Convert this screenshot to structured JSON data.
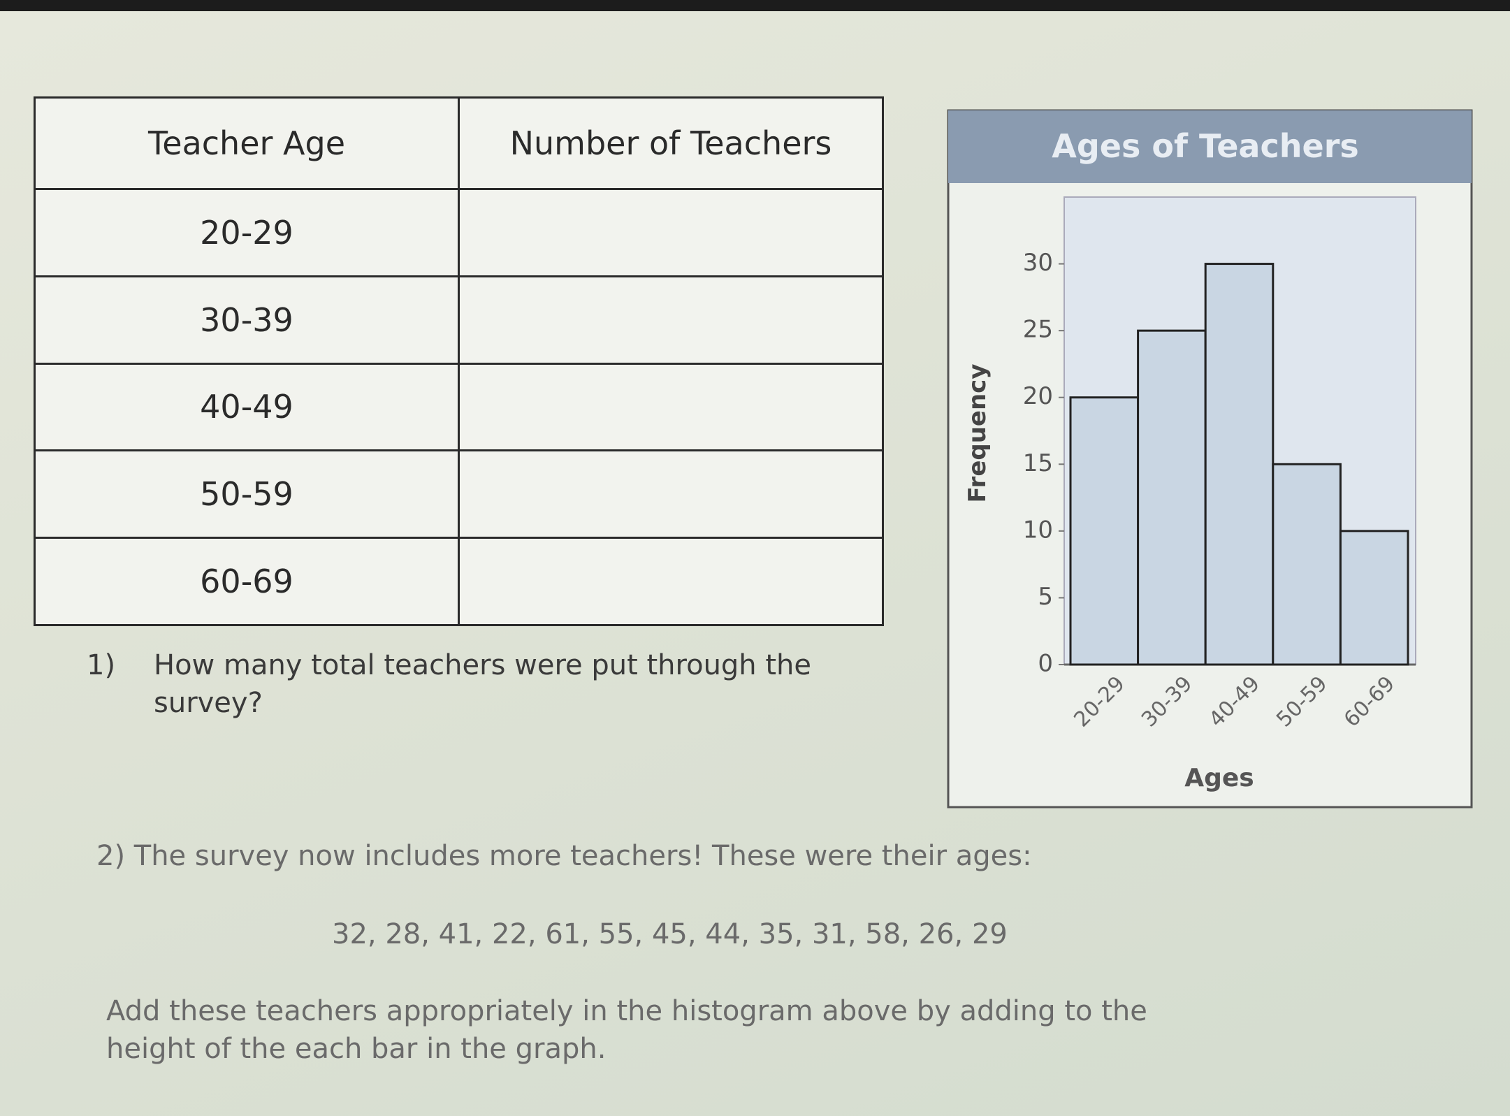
{
  "table": {
    "headers": [
      "Teacher Age",
      "Number of Teachers"
    ],
    "rows": [
      "20-29",
      "30-39",
      "40-49",
      "50-59",
      "60-69"
    ]
  },
  "question1": {
    "number": "1)",
    "text": "How many total teachers were put through the survey?"
  },
  "question2": {
    "text": "2) The survey now includes more teachers! These were their ages:",
    "ages": "32, 28, 41, 22, 61, 55, 45, 44, 35, 31, 58, 26, 29",
    "instruction": "Add these teachers appropriately in the histogram above by adding to the height of the each bar in the graph."
  },
  "chart_data": {
    "type": "bar",
    "title": "Ages of Teachers",
    "x_label": "Ages",
    "y_label": "Frequency",
    "categories": [
      "20-29",
      "30-39",
      "40-49",
      "50-59",
      "60-69"
    ],
    "values": [
      20,
      25,
      30,
      15,
      10
    ],
    "color": "#c9d6e3",
    "ylim": [
      0,
      35
    ],
    "yticks": [
      0,
      5,
      10,
      15,
      20,
      25,
      30
    ]
  }
}
